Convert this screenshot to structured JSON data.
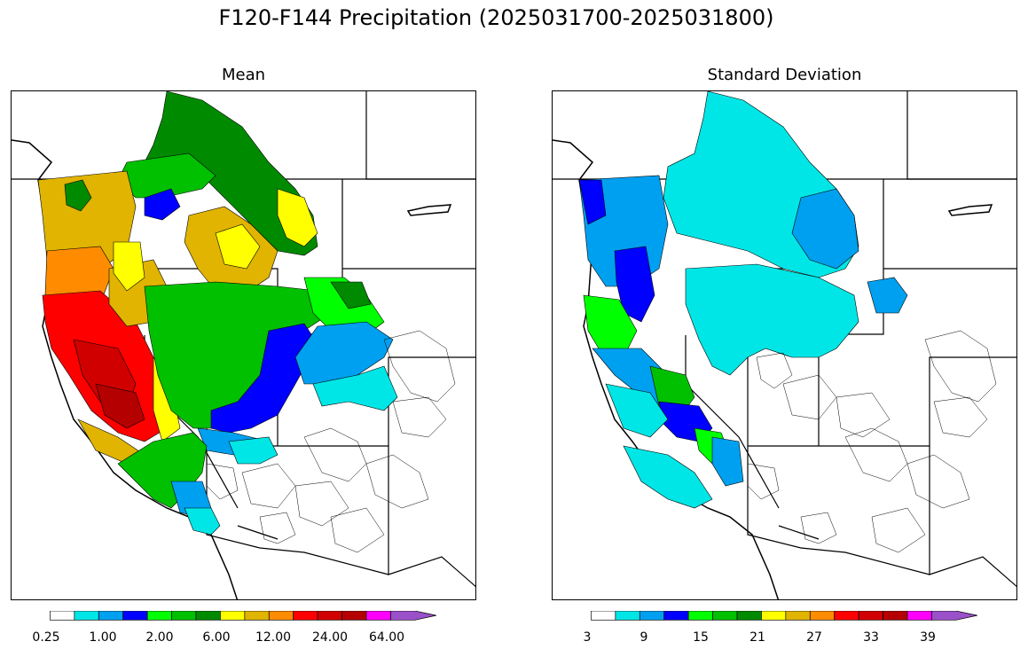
{
  "figure": {
    "title": "F120-F144 Precipitation (2025031700-2025031800)"
  },
  "panels": [
    {
      "id": "mean",
      "title": "Mean",
      "colorbar": {
        "colors": [
          "#ffffff",
          "#00e6e6",
          "#00a0f0",
          "#0000ff",
          "#00ff00",
          "#00c000",
          "#008a00",
          "#ffff00",
          "#e0b400",
          "#ff8c00",
          "#ff0000",
          "#d00000",
          "#b40000",
          "#ff00ff",
          "#9a50c8"
        ],
        "tick_labels": [
          "0.25",
          "1.00",
          "2.00",
          "6.00",
          "12.00",
          "24.00",
          "64.00"
        ],
        "extend": "max"
      }
    },
    {
      "id": "stddev",
      "title": "Standard Deviation",
      "colorbar": {
        "colors": [
          "#ffffff",
          "#00e6e6",
          "#00a0f0",
          "#0000ff",
          "#00ff00",
          "#00c000",
          "#008a00",
          "#ffff00",
          "#e0b400",
          "#ff8c00",
          "#ff0000",
          "#d00000",
          "#b40000",
          "#ff00ff",
          "#9a50c8"
        ],
        "tick_labels": [
          "3",
          "9",
          "15",
          "21",
          "27",
          "33",
          "39"
        ],
        "extend": "max"
      }
    }
  ]
}
